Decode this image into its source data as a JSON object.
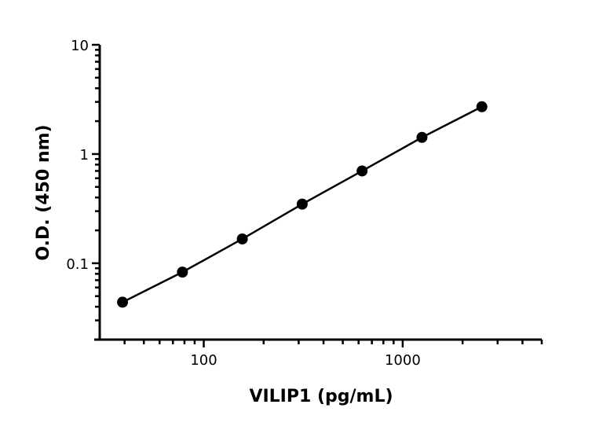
{
  "chart_data": {
    "type": "line",
    "title": "",
    "xlabel": "VILIP1 (pg/mL)",
    "ylabel": "O.D. (450 nm)",
    "xscale": "log",
    "yscale": "log",
    "xlim": [
      30,
      5000
    ],
    "ylim": [
      0.02,
      10
    ],
    "xticks": [
      {
        "value": 100,
        "label": "100"
      },
      {
        "value": 1000,
        "label": "1000"
      }
    ],
    "yticks": [
      {
        "value": 0.1,
        "label": "0.1"
      },
      {
        "value": 1,
        "label": "1"
      },
      {
        "value": 10,
        "label": "10"
      }
    ],
    "grid": false,
    "legend": "none",
    "series": [
      {
        "x": [
          39.06,
          78.13,
          156.25,
          312.5,
          625,
          1250,
          2500
        ],
        "y": [
          0.044,
          0.083,
          0.167,
          0.348,
          0.7,
          1.42,
          2.71
        ],
        "marker": "circle",
        "color": "#000000"
      }
    ]
  }
}
